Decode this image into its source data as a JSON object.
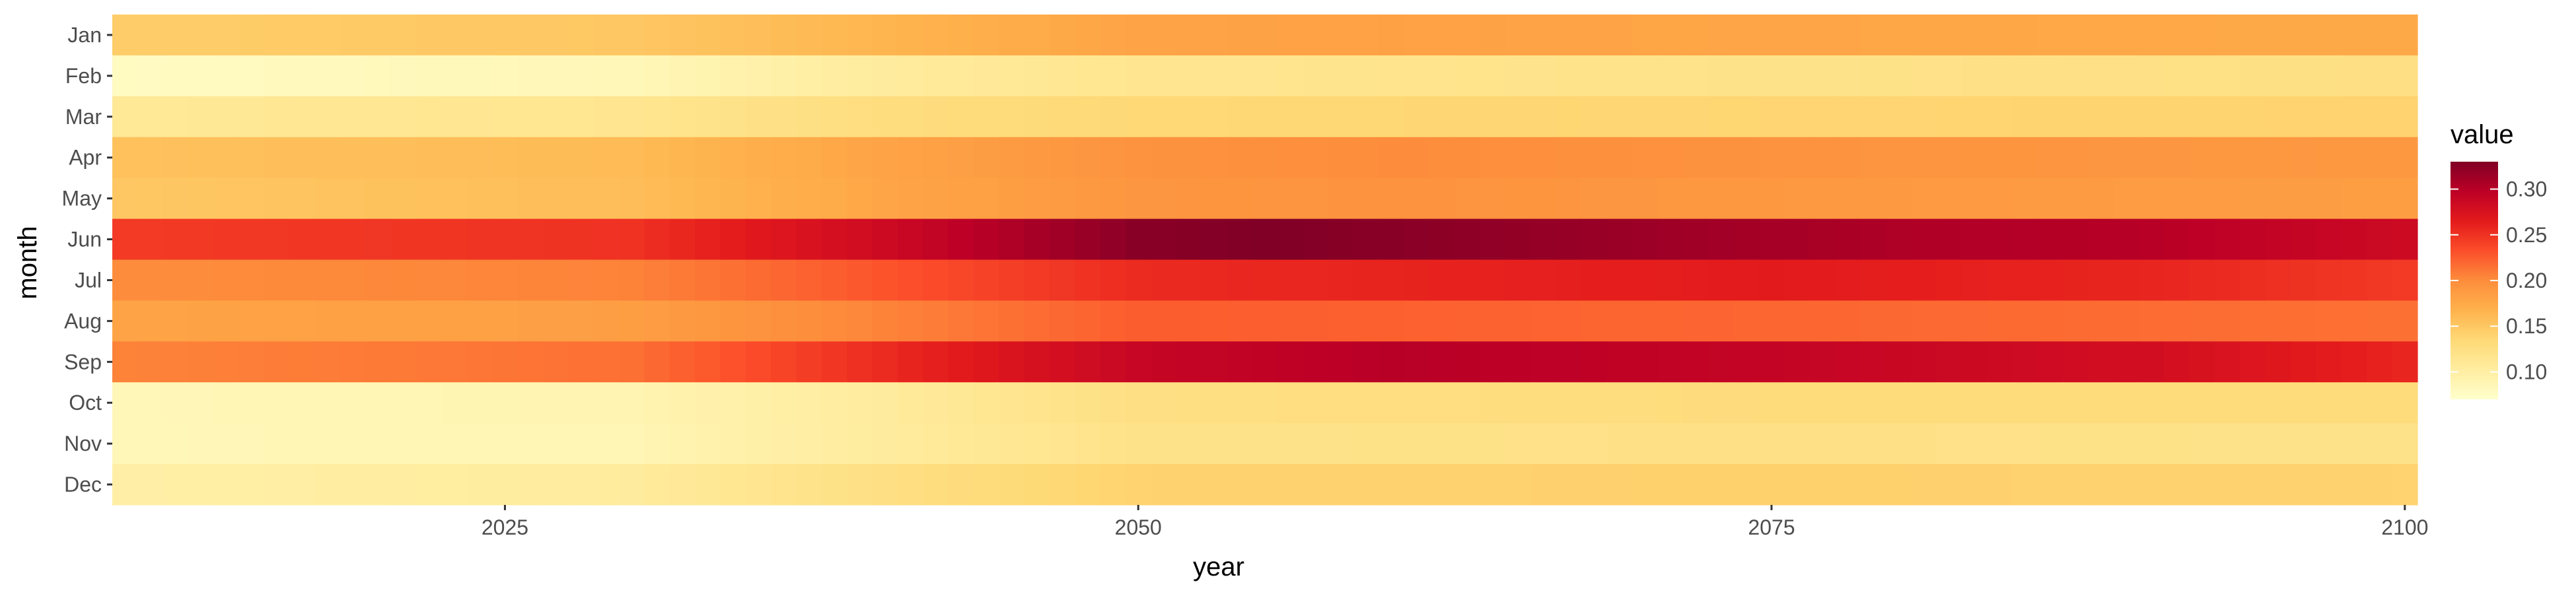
{
  "chart_data": {
    "type": "heatmap",
    "title": "",
    "xlabel": "year",
    "ylabel": "month",
    "legend": {
      "title": "value",
      "position": "right",
      "ticks": [
        "0.10",
        "0.15",
        "0.20",
        "0.25",
        "0.30"
      ]
    },
    "months": [
      "Jan",
      "Feb",
      "Mar",
      "Apr",
      "May",
      "Jun",
      "Jul",
      "Aug",
      "Sep",
      "Oct",
      "Nov",
      "Dec"
    ],
    "x_tick_labels": [
      "2025",
      "2050",
      "2075",
      "2100"
    ],
    "x_range": [
      2010,
      2100
    ],
    "value_range": [
      0.07,
      0.33
    ],
    "colorscale": [
      "#ffffcc",
      "#ffeda0",
      "#fed976",
      "#feb24c",
      "#fd8d3c",
      "#fc4e2a",
      "#e31a1c",
      "#bd0026",
      "#800026"
    ],
    "grid": false,
    "series_by_month": [
      {
        "month": "Jan",
        "keyframes": [
          [
            2010,
            0.145
          ],
          [
            2030,
            0.15
          ],
          [
            2040,
            0.165
          ],
          [
            2050,
            0.18
          ],
          [
            2060,
            0.182
          ],
          [
            2075,
            0.178
          ],
          [
            2100,
            0.175
          ]
        ]
      },
      {
        "month": "Feb",
        "keyframes": [
          [
            2010,
            0.078
          ],
          [
            2030,
            0.085
          ],
          [
            2040,
            0.105
          ],
          [
            2050,
            0.115
          ],
          [
            2075,
            0.12
          ],
          [
            2100,
            0.125
          ]
        ]
      },
      {
        "month": "Mar",
        "keyframes": [
          [
            2010,
            0.11
          ],
          [
            2030,
            0.115
          ],
          [
            2040,
            0.128
          ],
          [
            2050,
            0.135
          ],
          [
            2075,
            0.138
          ],
          [
            2100,
            0.14
          ]
        ]
      },
      {
        "month": "Apr",
        "keyframes": [
          [
            2010,
            0.155
          ],
          [
            2030,
            0.16
          ],
          [
            2040,
            0.18
          ],
          [
            2050,
            0.195
          ],
          [
            2060,
            0.2
          ],
          [
            2075,
            0.195
          ],
          [
            2100,
            0.19
          ]
        ]
      },
      {
        "month": "May",
        "keyframes": [
          [
            2010,
            0.15
          ],
          [
            2030,
            0.158
          ],
          [
            2040,
            0.178
          ],
          [
            2050,
            0.192
          ],
          [
            2060,
            0.195
          ],
          [
            2075,
            0.19
          ],
          [
            2100,
            0.185
          ]
        ]
      },
      {
        "month": "Jun",
        "keyframes": [
          [
            2010,
            0.245
          ],
          [
            2030,
            0.25
          ],
          [
            2040,
            0.285
          ],
          [
            2050,
            0.325
          ],
          [
            2055,
            0.33
          ],
          [
            2065,
            0.32
          ],
          [
            2080,
            0.305
          ],
          [
            2090,
            0.3
          ],
          [
            2100,
            0.285
          ]
        ]
      },
      {
        "month": "Jul",
        "keyframes": [
          [
            2010,
            0.2
          ],
          [
            2030,
            0.205
          ],
          [
            2040,
            0.23
          ],
          [
            2050,
            0.255
          ],
          [
            2075,
            0.265
          ],
          [
            2090,
            0.258
          ],
          [
            2100,
            0.245
          ]
        ]
      },
      {
        "month": "Aug",
        "keyframes": [
          [
            2010,
            0.18
          ],
          [
            2030,
            0.185
          ],
          [
            2040,
            0.205
          ],
          [
            2050,
            0.225
          ],
          [
            2075,
            0.22
          ],
          [
            2100,
            0.215
          ]
        ]
      },
      {
        "month": "Sep",
        "keyframes": [
          [
            2010,
            0.205
          ],
          [
            2030,
            0.215
          ],
          [
            2040,
            0.255
          ],
          [
            2050,
            0.29
          ],
          [
            2060,
            0.3
          ],
          [
            2075,
            0.292
          ],
          [
            2090,
            0.28
          ],
          [
            2100,
            0.258
          ]
        ]
      },
      {
        "month": "Oct",
        "keyframes": [
          [
            2010,
            0.085
          ],
          [
            2030,
            0.09
          ],
          [
            2040,
            0.105
          ],
          [
            2050,
            0.125
          ],
          [
            2075,
            0.13
          ],
          [
            2100,
            0.13
          ]
        ]
      },
      {
        "month": "Nov",
        "keyframes": [
          [
            2010,
            0.085
          ],
          [
            2030,
            0.088
          ],
          [
            2040,
            0.105
          ],
          [
            2050,
            0.12
          ],
          [
            2075,
            0.122
          ],
          [
            2100,
            0.12
          ]
        ]
      },
      {
        "month": "Dec",
        "keyframes": [
          [
            2010,
            0.098
          ],
          [
            2030,
            0.105
          ],
          [
            2040,
            0.125
          ],
          [
            2050,
            0.14
          ],
          [
            2075,
            0.142
          ],
          [
            2100,
            0.14
          ]
        ]
      }
    ]
  }
}
